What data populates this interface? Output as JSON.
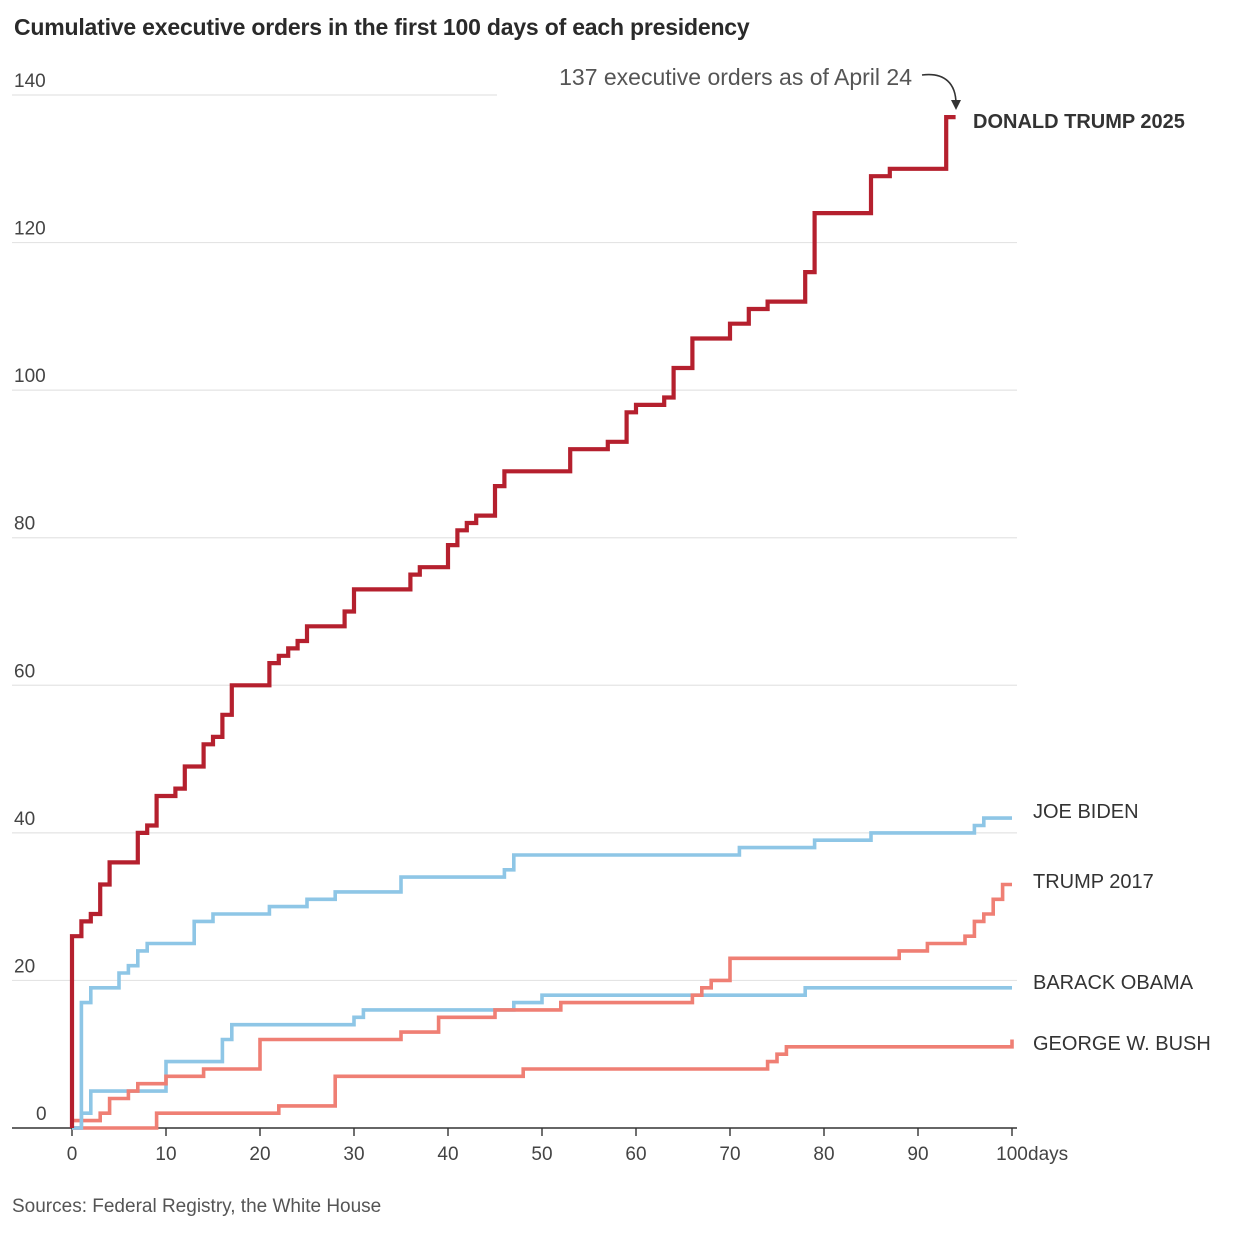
{
  "title": "Cumulative executive orders in the first 100 days of each presidency",
  "source": "Sources: Federal Registry, the White House",
  "annotation": "137 executive orders as of April 24",
  "chart_data": {
    "type": "line",
    "title": "Cumulative executive orders in the first 100 days of each presidency",
    "xlabel": "days",
    "ylabel": "",
    "xlim": [
      0,
      100
    ],
    "ylim": [
      0,
      140
    ],
    "y_ticks": [
      "0",
      "20",
      "40",
      "60",
      "80",
      "100",
      "120",
      "140"
    ],
    "x_ticks": [
      "0",
      "10",
      "20",
      "30",
      "40",
      "50",
      "60",
      "70",
      "80",
      "90",
      "100"
    ],
    "x_unit_label": "days",
    "grid": true,
    "series": [
      {
        "name": "DONALD TRUMP 2025",
        "color": "#b5202e",
        "label_style": "bold",
        "points": [
          [
            0,
            0
          ],
          [
            0,
            26
          ],
          [
            1,
            28
          ],
          [
            2,
            29
          ],
          [
            3,
            33
          ],
          [
            4,
            36
          ],
          [
            7,
            40
          ],
          [
            8,
            41
          ],
          [
            9,
            45
          ],
          [
            11,
            46
          ],
          [
            12,
            49
          ],
          [
            14,
            52
          ],
          [
            15,
            53
          ],
          [
            16,
            56
          ],
          [
            17,
            60
          ],
          [
            21,
            63
          ],
          [
            22,
            64
          ],
          [
            23,
            65
          ],
          [
            24,
            66
          ],
          [
            25,
            68
          ],
          [
            29,
            70
          ],
          [
            30,
            73
          ],
          [
            36,
            75
          ],
          [
            37,
            76
          ],
          [
            40,
            79
          ],
          [
            41,
            81
          ],
          [
            42,
            82
          ],
          [
            43,
            83
          ],
          [
            45,
            87
          ],
          [
            46,
            89
          ],
          [
            53,
            92
          ],
          [
            57,
            93
          ],
          [
            59,
            97
          ],
          [
            60,
            98
          ],
          [
            63,
            99
          ],
          [
            64,
            103
          ],
          [
            66,
            107
          ],
          [
            70,
            109
          ],
          [
            72,
            111
          ],
          [
            74,
            112
          ],
          [
            78,
            116
          ],
          [
            79,
            124
          ],
          [
            85,
            129
          ],
          [
            87,
            130
          ],
          [
            93,
            137
          ],
          [
            94,
            137
          ]
        ]
      },
      {
        "name": "JOE BIDEN",
        "color": "#8ec6e6",
        "label_style": "normal",
        "points": [
          [
            0,
            0
          ],
          [
            1,
            9
          ],
          [
            1,
            17
          ],
          [
            2,
            19
          ],
          [
            5,
            21
          ],
          [
            6,
            22
          ],
          [
            7,
            24
          ],
          [
            8,
            25
          ],
          [
            13,
            28
          ],
          [
            15,
            29
          ],
          [
            21,
            30
          ],
          [
            25,
            31
          ],
          [
            28,
            32
          ],
          [
            35,
            34
          ],
          [
            46,
            35
          ],
          [
            47,
            37
          ],
          [
            71,
            38
          ],
          [
            79,
            39
          ],
          [
            85,
            40
          ],
          [
            96,
            41
          ],
          [
            97,
            42
          ],
          [
            100,
            42
          ]
        ]
      },
      {
        "name": "TRUMP 2017",
        "color": "#ef7f74",
        "label_style": "normal",
        "points": [
          [
            0,
            0
          ],
          [
            0,
            1
          ],
          [
            3,
            2
          ],
          [
            4,
            4
          ],
          [
            6,
            5
          ],
          [
            7,
            6
          ],
          [
            10,
            7
          ],
          [
            14,
            8
          ],
          [
            20,
            12
          ],
          [
            35,
            13
          ],
          [
            39,
            15
          ],
          [
            45,
            16
          ],
          [
            52,
            17
          ],
          [
            66,
            18
          ],
          [
            67,
            19
          ],
          [
            68,
            20
          ],
          [
            70,
            23
          ],
          [
            88,
            24
          ],
          [
            91,
            25
          ],
          [
            95,
            26
          ],
          [
            96,
            28
          ],
          [
            97,
            29
          ],
          [
            98,
            31
          ],
          [
            99,
            33
          ],
          [
            100,
            33
          ]
        ]
      },
      {
        "name": "BARACK OBAMA",
        "color": "#8ec6e6",
        "label_style": "normal",
        "points": [
          [
            0,
            0
          ],
          [
            1,
            2
          ],
          [
            2,
            5
          ],
          [
            10,
            9
          ],
          [
            16,
            12
          ],
          [
            17,
            14
          ],
          [
            30,
            15
          ],
          [
            31,
            16
          ],
          [
            47,
            17
          ],
          [
            50,
            18
          ],
          [
            78,
            19
          ],
          [
            100,
            19
          ]
        ]
      },
      {
        "name": "GEORGE W. BUSH",
        "color": "#ef7f74",
        "label_style": "normal",
        "points": [
          [
            0,
            0
          ],
          [
            9,
            2
          ],
          [
            22,
            3
          ],
          [
            28,
            7
          ],
          [
            48,
            8
          ],
          [
            74,
            9
          ],
          [
            75,
            10
          ],
          [
            76,
            11
          ],
          [
            100,
            11
          ],
          [
            100,
            12
          ]
        ]
      }
    ]
  }
}
